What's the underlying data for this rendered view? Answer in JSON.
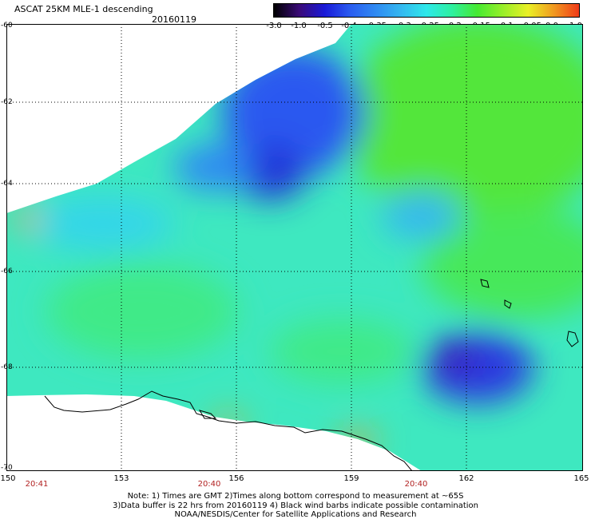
{
  "header": {
    "title": "ASCAT 25KM MLE-1 descending",
    "date": "20160119"
  },
  "colorbar": {
    "labels": [
      "-3.0",
      "-1.0",
      "-0.5",
      "-0.4",
      "-0.35",
      "-0.3",
      "-0.25",
      "-0.2",
      "-0.15",
      "-0.1",
      "-0.05",
      "0.0",
      "1.0"
    ],
    "colors": [
      "#000000",
      "#3a0a78",
      "#1a1ad8",
      "#2a5cf0",
      "#2f8af2",
      "#34b8f0",
      "#2ee8ea",
      "#2ef0a0",
      "#46ea32",
      "#98ee2a",
      "#eaf026",
      "#f09a20",
      "#f03a18"
    ]
  },
  "axes": {
    "lat_labels": [
      "-60",
      "-62",
      "-64",
      "-66",
      "-68",
      "-70"
    ],
    "lon_labels": [
      "150",
      "153",
      "156",
      "159",
      "162",
      "165"
    ],
    "time_labels": [
      "20:41",
      "20:40",
      "20:40"
    ]
  },
  "notes": {
    "line1": "Note: 1) Times are GMT 2)Times along bottom correspond to measurement at ~65S",
    "line2": "3)Data buffer is 22 hrs from 20160119 4) Black wind barbs indicate possible contamination",
    "line3": "NOAA/NESDIS/Center for Satellite Applications and Research"
  }
}
